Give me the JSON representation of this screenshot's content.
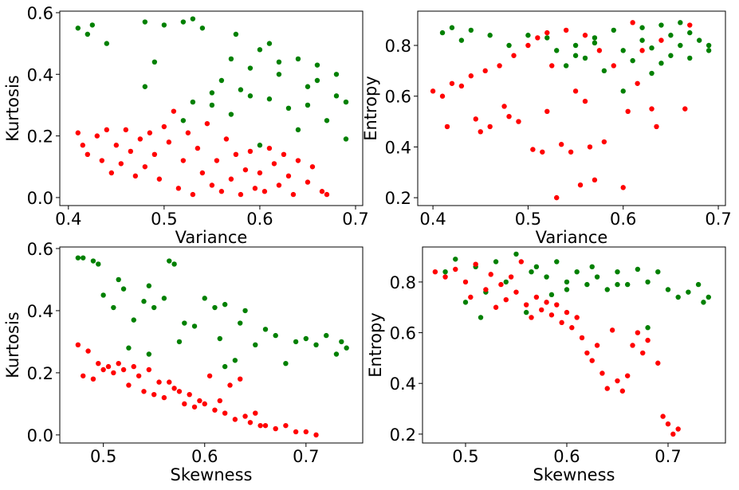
{
  "chart_data": [
    {
      "type": "scatter",
      "xlabel": "Variance",
      "ylabel": "Kurtosis",
      "xlim": [
        0.391,
        0.7075
      ],
      "ylim": [
        -0.026,
        0.605
      ],
      "xticks": [
        {
          "value": 0.4,
          "label": "0.4"
        },
        0.5,
        0.6,
        0.7
      ],
      "yticks": [
        {
          "value": 0,
          "label": "0.0"
        },
        0.2,
        0.4,
        0.6
      ],
      "series": [
        {
          "color": "green",
          "x": [
            0.41,
            0.42,
            0.425,
            0.44,
            0.48,
            0.49,
            0.48,
            0.5,
            0.52,
            0.53,
            0.54,
            0.53,
            0.55,
            0.56,
            0.57,
            0.575,
            0.58,
            0.59,
            0.6,
            0.61,
            0.6,
            0.62,
            0.63,
            0.64,
            0.64,
            0.65,
            0.66,
            0.67,
            0.68,
            0.69,
            0.69,
            0.68,
            0.61,
            0.57,
            0.62,
            0.55,
            0.65,
            0.59,
            0.52,
            0.66
          ],
          "values": [
            0.55,
            0.53,
            0.56,
            0.5,
            0.57,
            0.44,
            0.36,
            0.56,
            0.57,
            0.58,
            0.55,
            0.31,
            0.3,
            0.38,
            0.45,
            0.53,
            0.35,
            0.42,
            0.48,
            0.32,
            0.17,
            0.4,
            0.29,
            0.45,
            0.22,
            0.36,
            0.43,
            0.25,
            0.33,
            0.31,
            0.19,
            0.4,
            0.5,
            0.27,
            0.44,
            0.34,
            0.3,
            0.33,
            0.25,
            0.38
          ]
        },
        {
          "color": "red",
          "x": [
            0.41,
            0.415,
            0.42,
            0.43,
            0.435,
            0.44,
            0.445,
            0.45,
            0.455,
            0.46,
            0.465,
            0.47,
            0.475,
            0.48,
            0.485,
            0.49,
            0.495,
            0.5,
            0.505,
            0.51,
            0.515,
            0.52,
            0.525,
            0.53,
            0.535,
            0.54,
            0.545,
            0.55,
            0.555,
            0.56,
            0.565,
            0.57,
            0.575,
            0.58,
            0.585,
            0.59,
            0.595,
            0.6,
            0.605,
            0.61,
            0.615,
            0.62,
            0.625,
            0.63,
            0.635,
            0.64,
            0.65,
            0.655,
            0.665,
            0.67
          ],
          "values": [
            0.21,
            0.17,
            0.14,
            0.2,
            0.12,
            0.22,
            0.08,
            0.17,
            0.11,
            0.22,
            0.15,
            0.07,
            0.19,
            0.1,
            0.21,
            0.14,
            0.06,
            0.23,
            0.18,
            0.28,
            0.03,
            0.12,
            0.21,
            0.01,
            0.16,
            0.08,
            0.24,
            0.04,
            0.12,
            0.02,
            0.19,
            0.06,
            0.14,
            0.01,
            0.09,
            0.15,
            0.03,
            0.08,
            0.02,
            0.16,
            0.11,
            0.04,
            0.14,
            0.07,
            0.01,
            0.12,
            0.05,
            0.1,
            0.02,
            0.01
          ]
        }
      ]
    },
    {
      "type": "scatter",
      "xlabel": "Variance",
      "ylabel": "Entropy",
      "xlim": [
        0.384,
        0.7075
      ],
      "ylim": [
        0.169,
        0.935
      ],
      "xticks": [
        0.4,
        0.5,
        0.6,
        0.7
      ],
      "yticks": [
        0.2,
        0.4,
        0.6,
        0.8
      ],
      "series": [
        {
          "color": "green",
          "x": [
            0.41,
            0.42,
            0.44,
            0.43,
            0.46,
            0.48,
            0.5,
            0.52,
            0.53,
            0.54,
            0.55,
            0.56,
            0.57,
            0.58,
            0.59,
            0.6,
            0.61,
            0.62,
            0.63,
            0.63,
            0.64,
            0.65,
            0.65,
            0.66,
            0.66,
            0.67,
            0.68,
            0.69,
            0.69,
            0.6,
            0.55,
            0.62,
            0.67,
            0.57,
            0.64
          ],
          "values": [
            0.85,
            0.87,
            0.86,
            0.82,
            0.84,
            0.8,
            0.84,
            0.83,
            0.78,
            0.72,
            0.8,
            0.75,
            0.83,
            0.7,
            0.86,
            0.78,
            0.74,
            0.82,
            0.79,
            0.69,
            0.88,
            0.84,
            0.76,
            0.8,
            0.89,
            0.75,
            0.82,
            0.8,
            0.78,
            0.62,
            0.76,
            0.87,
            0.85,
            0.81,
            0.73
          ]
        },
        {
          "color": "red",
          "x": [
            0.4,
            0.41,
            0.415,
            0.42,
            0.43,
            0.44,
            0.445,
            0.45,
            0.455,
            0.46,
            0.47,
            0.475,
            0.48,
            0.485,
            0.49,
            0.5,
            0.505,
            0.51,
            0.515,
            0.52,
            0.525,
            0.53,
            0.535,
            0.54,
            0.545,
            0.55,
            0.555,
            0.56,
            0.565,
            0.57,
            0.575,
            0.58,
            0.59,
            0.6,
            0.605,
            0.61,
            0.615,
            0.62,
            0.63,
            0.635,
            0.64,
            0.665,
            0.67,
            0.52,
            0.56
          ],
          "values": [
            0.62,
            0.6,
            0.48,
            0.65,
            0.64,
            0.68,
            0.51,
            0.46,
            0.7,
            0.48,
            0.72,
            0.56,
            0.52,
            0.76,
            0.5,
            0.8,
            0.39,
            0.83,
            0.38,
            0.54,
            0.72,
            0.2,
            0.41,
            0.86,
            0.38,
            0.62,
            0.25,
            0.84,
            0.4,
            0.27,
            0.78,
            0.42,
            0.72,
            0.24,
            0.54,
            0.89,
            0.65,
            0.78,
            0.55,
            0.48,
            0.82,
            0.55,
            0.88,
            0.85,
            0.58
          ]
        }
      ]
    },
    {
      "type": "scatter",
      "xlabel": "Skewness",
      "ylabel": "Kurtosis",
      "xlim": [
        0.457,
        0.756
      ],
      "ylim": [
        -0.026,
        0.605
      ],
      "xticks": [
        0.5,
        0.6,
        0.7
      ],
      "yticks": [
        {
          "value": 0,
          "label": "0.0"
        },
        0.2,
        0.4,
        0.6
      ],
      "series": [
        {
          "color": "green",
          "x": [
            0.475,
            0.48,
            0.49,
            0.495,
            0.5,
            0.51,
            0.515,
            0.52,
            0.525,
            0.53,
            0.54,
            0.545,
            0.55,
            0.56,
            0.565,
            0.57,
            0.575,
            0.58,
            0.59,
            0.6,
            0.61,
            0.615,
            0.62,
            0.63,
            0.635,
            0.64,
            0.65,
            0.66,
            0.67,
            0.68,
            0.69,
            0.7,
            0.71,
            0.72,
            0.73,
            0.735,
            0.74,
            0.62,
            0.545
          ],
          "values": [
            0.57,
            0.57,
            0.56,
            0.55,
            0.45,
            0.41,
            0.5,
            0.47,
            0.28,
            0.37,
            0.43,
            0.48,
            0.41,
            0.44,
            0.56,
            0.55,
            0.3,
            0.36,
            0.35,
            0.44,
            0.41,
            0.31,
            0.42,
            0.24,
            0.36,
            0.4,
            0.29,
            0.34,
            0.32,
            0.23,
            0.3,
            0.31,
            0.29,
            0.32,
            0.26,
            0.3,
            0.28,
            0.22,
            0.26
          ]
        },
        {
          "color": "red",
          "x": [
            0.475,
            0.48,
            0.485,
            0.49,
            0.495,
            0.5,
            0.505,
            0.51,
            0.515,
            0.52,
            0.525,
            0.53,
            0.535,
            0.54,
            0.545,
            0.55,
            0.555,
            0.56,
            0.565,
            0.57,
            0.575,
            0.58,
            0.585,
            0.59,
            0.595,
            0.6,
            0.605,
            0.61,
            0.615,
            0.62,
            0.625,
            0.63,
            0.635,
            0.64,
            0.645,
            0.65,
            0.655,
            0.66,
            0.67,
            0.68,
            0.69,
            0.7,
            0.71
          ],
          "values": [
            0.29,
            0.19,
            0.27,
            0.18,
            0.23,
            0.21,
            0.22,
            0.2,
            0.23,
            0.21,
            0.16,
            0.22,
            0.19,
            0.14,
            0.21,
            0.13,
            0.17,
            0.12,
            0.17,
            0.15,
            0.14,
            0.1,
            0.13,
            0.09,
            0.11,
            0.1,
            0.19,
            0.08,
            0.11,
            0.07,
            0.16,
            0.05,
            0.18,
            0.06,
            0.04,
            0.07,
            0.03,
            0.03,
            0.02,
            0.03,
            0.01,
            0.01,
            0.0
          ]
        }
      ]
    },
    {
      "type": "scatter",
      "xlabel": "Skewness",
      "ylabel": "Entropy",
      "xlim": [
        0.4575,
        0.7567
      ],
      "ylim": [
        0.165,
        0.938
      ],
      "xticks": [
        0.5,
        0.6,
        0.7
      ],
      "yticks": [
        0.2,
        0.4,
        0.6,
        0.8
      ],
      "series": [
        {
          "color": "green",
          "x": [
            0.48,
            0.49,
            0.5,
            0.51,
            0.515,
            0.52,
            0.53,
            0.54,
            0.55,
            0.56,
            0.565,
            0.57,
            0.58,
            0.585,
            0.59,
            0.6,
            0.61,
            0.62,
            0.625,
            0.63,
            0.64,
            0.65,
            0.66,
            0.67,
            0.68,
            0.69,
            0.7,
            0.71,
            0.72,
            0.73,
            0.735,
            0.74,
            0.68,
            0.6,
            0.65
          ],
          "values": [
            0.84,
            0.89,
            0.72,
            0.86,
            0.66,
            0.76,
            0.88,
            0.8,
            0.91,
            0.68,
            0.84,
            0.86,
            0.82,
            0.75,
            0.88,
            0.8,
            0.84,
            0.79,
            0.86,
            0.82,
            0.77,
            0.84,
            0.79,
            0.85,
            0.8,
            0.84,
            0.77,
            0.74,
            0.76,
            0.79,
            0.72,
            0.74,
            0.62,
            0.77,
            0.79
          ]
        },
        {
          "color": "red",
          "x": [
            0.47,
            0.48,
            0.49,
            0.5,
            0.505,
            0.51,
            0.52,
            0.525,
            0.53,
            0.535,
            0.54,
            0.545,
            0.55,
            0.555,
            0.56,
            0.565,
            0.57,
            0.575,
            0.58,
            0.585,
            0.59,
            0.595,
            0.6,
            0.605,
            0.61,
            0.615,
            0.62,
            0.625,
            0.63,
            0.635,
            0.64,
            0.645,
            0.65,
            0.655,
            0.66,
            0.665,
            0.67,
            0.675,
            0.68,
            0.69,
            0.695,
            0.7,
            0.705,
            0.71
          ],
          "values": [
            0.84,
            0.82,
            0.85,
            0.8,
            0.74,
            0.87,
            0.77,
            0.83,
            0.7,
            0.79,
            0.73,
            0.82,
            0.76,
            0.88,
            0.71,
            0.66,
            0.74,
            0.69,
            0.72,
            0.67,
            0.71,
            0.64,
            0.68,
            0.62,
            0.66,
            0.58,
            0.52,
            0.49,
            0.55,
            0.44,
            0.38,
            0.61,
            0.41,
            0.37,
            0.43,
            0.55,
            0.6,
            0.52,
            0.57,
            0.48,
            0.27,
            0.24,
            0.2,
            0.22
          ]
        }
      ]
    }
  ]
}
